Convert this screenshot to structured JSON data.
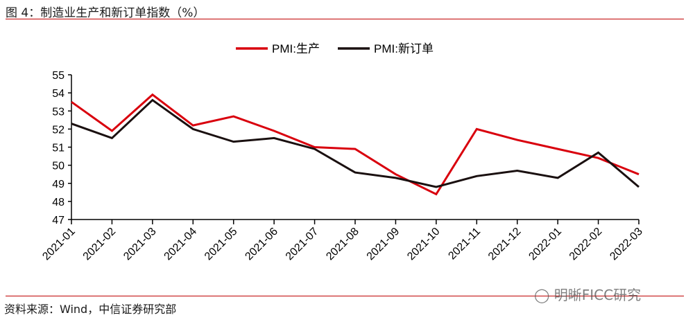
{
  "header": {
    "title": "图 4：制造业生产和新订单指数（%）"
  },
  "footer": {
    "source": "资料来源：Wind，中信证券研究部",
    "watermark": "明晰FICC研究"
  },
  "chart_data": {
    "type": "line",
    "title": "",
    "xlabel": "",
    "ylabel": "",
    "ylim": [
      47,
      55
    ],
    "yticks": [
      47,
      48,
      49,
      50,
      51,
      52,
      53,
      54,
      55
    ],
    "grid": false,
    "legend": "top-center",
    "categories": [
      "2021-01",
      "2021-02",
      "2021-03",
      "2021-04",
      "2021-05",
      "2021-06",
      "2021-07",
      "2021-08",
      "2021-09",
      "2021-10",
      "2021-11",
      "2021-12",
      "2022-01",
      "2022-02",
      "2022-03"
    ],
    "series": [
      {
        "name": "PMI:生产",
        "color": "#d9000d",
        "values": [
          53.5,
          51.9,
          53.9,
          52.2,
          52.7,
          51.9,
          51.0,
          50.9,
          49.5,
          48.4,
          52.0,
          51.4,
          50.9,
          50.4,
          49.5
        ]
      },
      {
        "name": "PMI:新订单",
        "color": "#1a1010",
        "values": [
          52.3,
          51.5,
          53.6,
          52.0,
          51.3,
          51.5,
          50.9,
          49.6,
          49.3,
          48.8,
          49.4,
          49.7,
          49.3,
          50.7,
          48.8
        ]
      }
    ]
  }
}
